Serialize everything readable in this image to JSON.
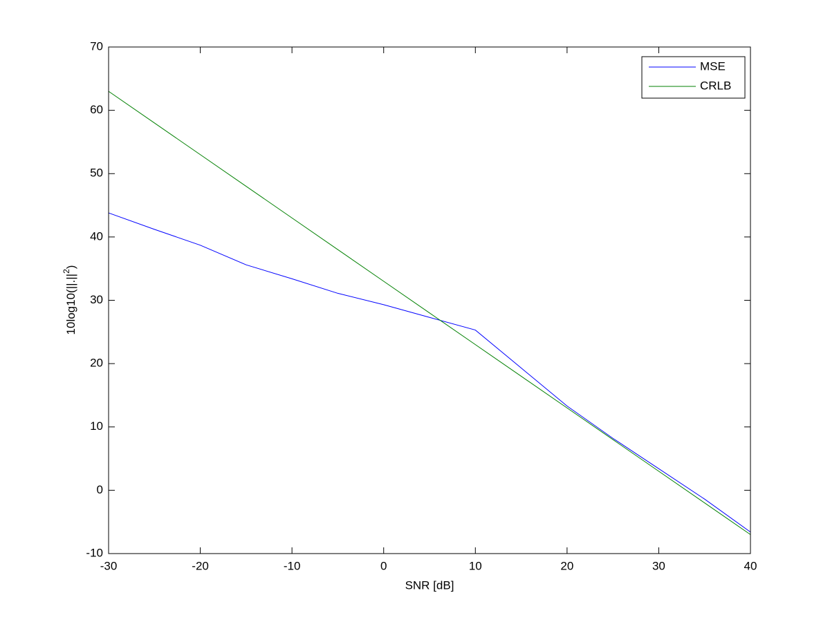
{
  "chart_data": {
    "type": "line",
    "xlabel": "SNR [dB]",
    "ylabel": [
      "10log10(||.||",
      "2",
      ")"
    ],
    "x": [
      -30,
      -25,
      -20,
      -15,
      -10,
      -5,
      0,
      5,
      10,
      15,
      20,
      25,
      30,
      35,
      40
    ],
    "series": [
      {
        "name": "MSE",
        "color": "#0000ff",
        "values": [
          43.8,
          41.2,
          38.7,
          35.6,
          33.4,
          31.1,
          29.3,
          27.3,
          25.3,
          19.3,
          13.3,
          8.2,
          3.4,
          -1.4,
          -6.6
        ]
      },
      {
        "name": "CRLB",
        "color": "#008000",
        "values": [
          63,
          58,
          53,
          48,
          43,
          38,
          33,
          28,
          23,
          18,
          13,
          8,
          3,
          -2,
          -7
        ]
      }
    ],
    "xlim": [
      -30,
      40
    ],
    "xticks": [
      -30,
      -20,
      -10,
      0,
      10,
      20,
      30,
      40
    ],
    "ylim": [
      -10,
      70
    ],
    "yticks": [
      -10,
      0,
      10,
      20,
      30,
      40,
      50,
      60,
      70
    ],
    "grid": false,
    "legend": "upper right"
  }
}
